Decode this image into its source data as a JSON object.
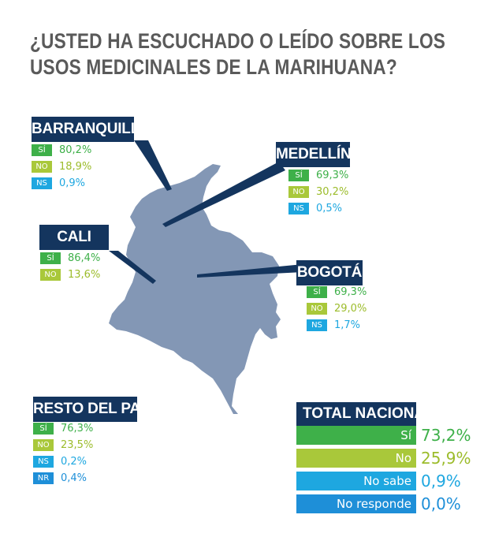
{
  "title": {
    "line1": "¿USTED HA ESCUCHADO O LEÍDO SOBRE LOS",
    "line2": "USOS MEDICINALES DE LA MARIHUANA?"
  },
  "colors": {
    "map": "#8397b5",
    "label_bg": "#14355e",
    "si": "#3eb049",
    "no": "#a9c83a",
    "ns": "#1ea7e0",
    "nr": "#1e8fd8"
  },
  "chart_data": {
    "type": "table",
    "title": "¿USTED HA ESCUCHADO O LEÍDO SOBRE LOS USOS MEDICINALES DE LA MARIHUANA?",
    "regions": [
      {
        "name": "BARRANQUILLA",
        "rows": [
          {
            "code": "SÍ",
            "value": "80,2%"
          },
          {
            "code": "NO",
            "value": "18,9%"
          },
          {
            "code": "NS",
            "value": "0,9%"
          }
        ]
      },
      {
        "name": "MEDELLÍN",
        "rows": [
          {
            "code": "SÍ",
            "value": "69,3%"
          },
          {
            "code": "NO",
            "value": "30,2%"
          },
          {
            "code": "NS",
            "value": "0,5%"
          }
        ]
      },
      {
        "name": "CALI",
        "rows": [
          {
            "code": "SÍ",
            "value": "86,4%"
          },
          {
            "code": "NO",
            "value": "13,6%"
          }
        ]
      },
      {
        "name": "BOGOTÁ",
        "rows": [
          {
            "code": "SÍ",
            "value": "69,3%"
          },
          {
            "code": "NO",
            "value": "29,0%"
          },
          {
            "code": "NS",
            "value": "1,7%"
          }
        ]
      },
      {
        "name": "RESTO DEL PAÍS",
        "rows": [
          {
            "code": "SÍ",
            "value": "76,3%"
          },
          {
            "code": "NO",
            "value": "23,5%"
          },
          {
            "code": "NS",
            "value": "0,2%"
          },
          {
            "code": "NR",
            "value": "0,4%"
          }
        ]
      }
    ],
    "national": {
      "title": "TOTAL NACIONAL:",
      "rows": [
        {
          "label": "Sí",
          "value": "73,2%"
        },
        {
          "label": "No",
          "value": "25,9%"
        },
        {
          "label": "No sabe",
          "value": "0,9%"
        },
        {
          "label": "No responde",
          "value": "0,0%"
        }
      ]
    }
  }
}
